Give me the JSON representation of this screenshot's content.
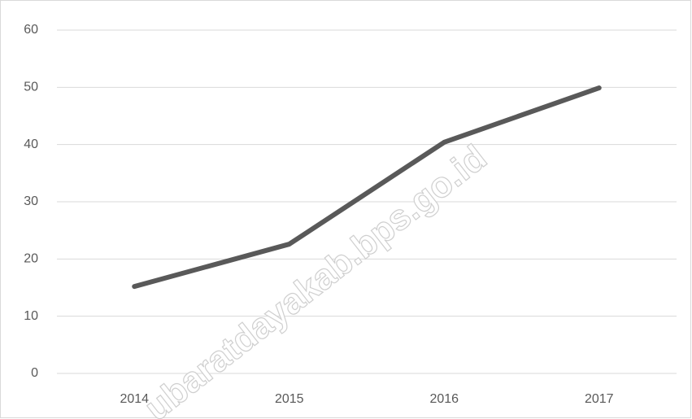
{
  "chart_data": {
    "type": "line",
    "categories": [
      "2014",
      "2015",
      "2016",
      "2017"
    ],
    "series": [
      {
        "name": null,
        "color": "#595959",
        "values": [
          15.2,
          22.6,
          40.4,
          49.9
        ]
      }
    ],
    "ylim": [
      0,
      60
    ],
    "yticks": [
      0,
      10,
      20,
      30,
      40,
      50,
      60
    ],
    "grid": true,
    "annotation": "ubaratdayakab.bps.go.id"
  }
}
